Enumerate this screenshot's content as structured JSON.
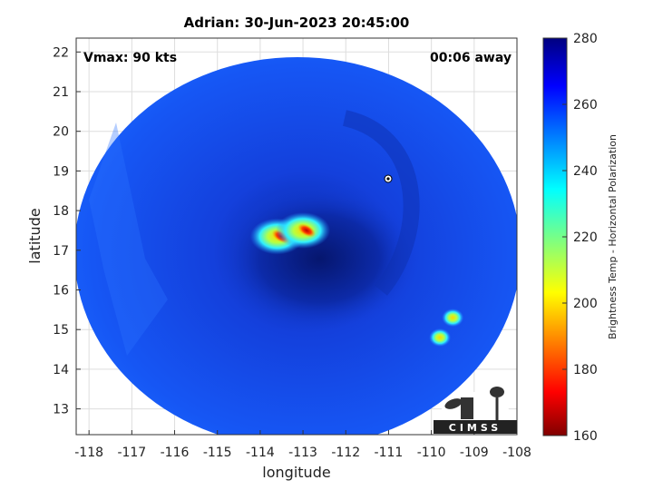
{
  "chart_data": {
    "type": "heatmap",
    "title": "Adrian: 30-Jun-2023 20:45:00",
    "xlabel": "longitude",
    "ylabel": "latitude",
    "xlim": [
      -118.3,
      -108
    ],
    "ylim": [
      12.35,
      22.35
    ],
    "x_ticks": [
      -118,
      -117,
      -116,
      -115,
      -114,
      -113,
      -112,
      -111,
      -110,
      -109,
      -108
    ],
    "y_ticks": [
      13,
      14,
      15,
      16,
      17,
      18,
      19,
      20,
      21,
      22
    ],
    "grid": true,
    "annotations": {
      "vmax": "Vmax: 90 kts",
      "time_offset": "00:06 away"
    },
    "storm_center": {
      "lon": -113.1,
      "lat": 17.4
    },
    "cold_cloud_features": [
      {
        "lon": -113.6,
        "lat": 17.35,
        "min_temp": 175
      },
      {
        "lon": -113.0,
        "lat": 17.5,
        "min_temp": 170
      },
      {
        "lon": -109.5,
        "lat": 15.3,
        "min_temp": 235
      },
      {
        "lon": -109.8,
        "lat": 14.8,
        "min_temp": 240
      }
    ],
    "colorbar": {
      "label": "Brightness Temp - Horizontal Polarization",
      "min": 160,
      "max": 280,
      "ticks": [
        160,
        180,
        200,
        220,
        240,
        260,
        280
      ],
      "colormap": "jet"
    }
  },
  "logo": {
    "text": "CIMSS"
  },
  "colors": {
    "background": "#ffffff",
    "ocean_field": "#1450f0",
    "eye_region": "#0c2aa8"
  }
}
